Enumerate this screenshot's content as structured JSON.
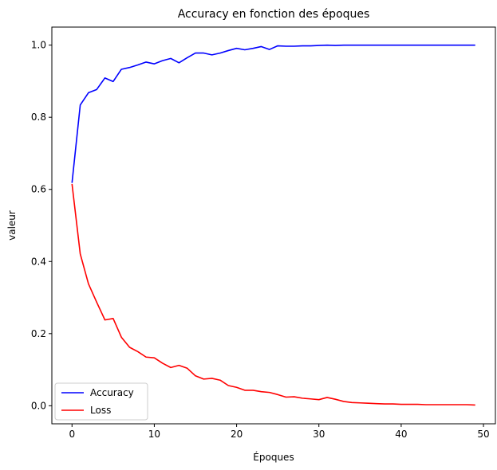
{
  "chart_data": {
    "type": "line",
    "title": "Accuracy en fonction des époques",
    "xlabel": "Époques",
    "ylabel": "valeur",
    "xlim": [
      -2.45,
      51.45
    ],
    "ylim": [
      -0.05,
      1.05
    ],
    "xticks": [
      0,
      10,
      20,
      30,
      40,
      50
    ],
    "yticks": [
      0.0,
      0.2,
      0.4,
      0.6,
      0.8,
      1.0
    ],
    "xtick_labels": [
      "0",
      "10",
      "20",
      "30",
      "40",
      "50"
    ],
    "ytick_labels": [
      "0.0",
      "0.2",
      "0.4",
      "0.6",
      "0.8",
      "1.0"
    ],
    "grid": false,
    "legend_position": "lower-left",
    "x": [
      0,
      1,
      2,
      3,
      4,
      5,
      6,
      7,
      8,
      9,
      10,
      11,
      12,
      13,
      14,
      15,
      16,
      17,
      18,
      19,
      20,
      21,
      22,
      23,
      24,
      25,
      26,
      27,
      28,
      29,
      30,
      31,
      32,
      33,
      34,
      35,
      36,
      37,
      38,
      39,
      40,
      41,
      42,
      43,
      44,
      45,
      46,
      47,
      48,
      49
    ],
    "series": [
      {
        "name": "Accuracy",
        "color": "#0000ff",
        "values": [
          0.618,
          0.834,
          0.868,
          0.877,
          0.909,
          0.899,
          0.933,
          0.938,
          0.945,
          0.953,
          0.948,
          0.957,
          0.963,
          0.951,
          0.965,
          0.978,
          0.978,
          0.973,
          0.978,
          0.985,
          0.991,
          0.987,
          0.991,
          0.996,
          0.988,
          0.998,
          0.997,
          0.997,
          0.998,
          0.998,
          0.999,
          1.0,
          0.999,
          1.0,
          1.0,
          1.0,
          1.0,
          1.0,
          1.0,
          1.0,
          1.0,
          1.0,
          1.0,
          1.0,
          1.0,
          1.0,
          1.0,
          1.0,
          1.0,
          1.0
        ]
      },
      {
        "name": "Loss",
        "color": "#ff0000",
        "values": [
          0.615,
          0.421,
          0.338,
          0.287,
          0.238,
          0.242,
          0.19,
          0.162,
          0.15,
          0.135,
          0.133,
          0.118,
          0.106,
          0.112,
          0.104,
          0.083,
          0.074,
          0.076,
          0.071,
          0.056,
          0.051,
          0.043,
          0.043,
          0.039,
          0.037,
          0.031,
          0.024,
          0.025,
          0.021,
          0.019,
          0.017,
          0.023,
          0.018,
          0.012,
          0.009,
          0.008,
          0.007,
          0.006,
          0.005,
          0.005,
          0.004,
          0.004,
          0.004,
          0.003,
          0.003,
          0.003,
          0.003,
          0.003,
          0.003,
          0.002
        ]
      }
    ]
  }
}
